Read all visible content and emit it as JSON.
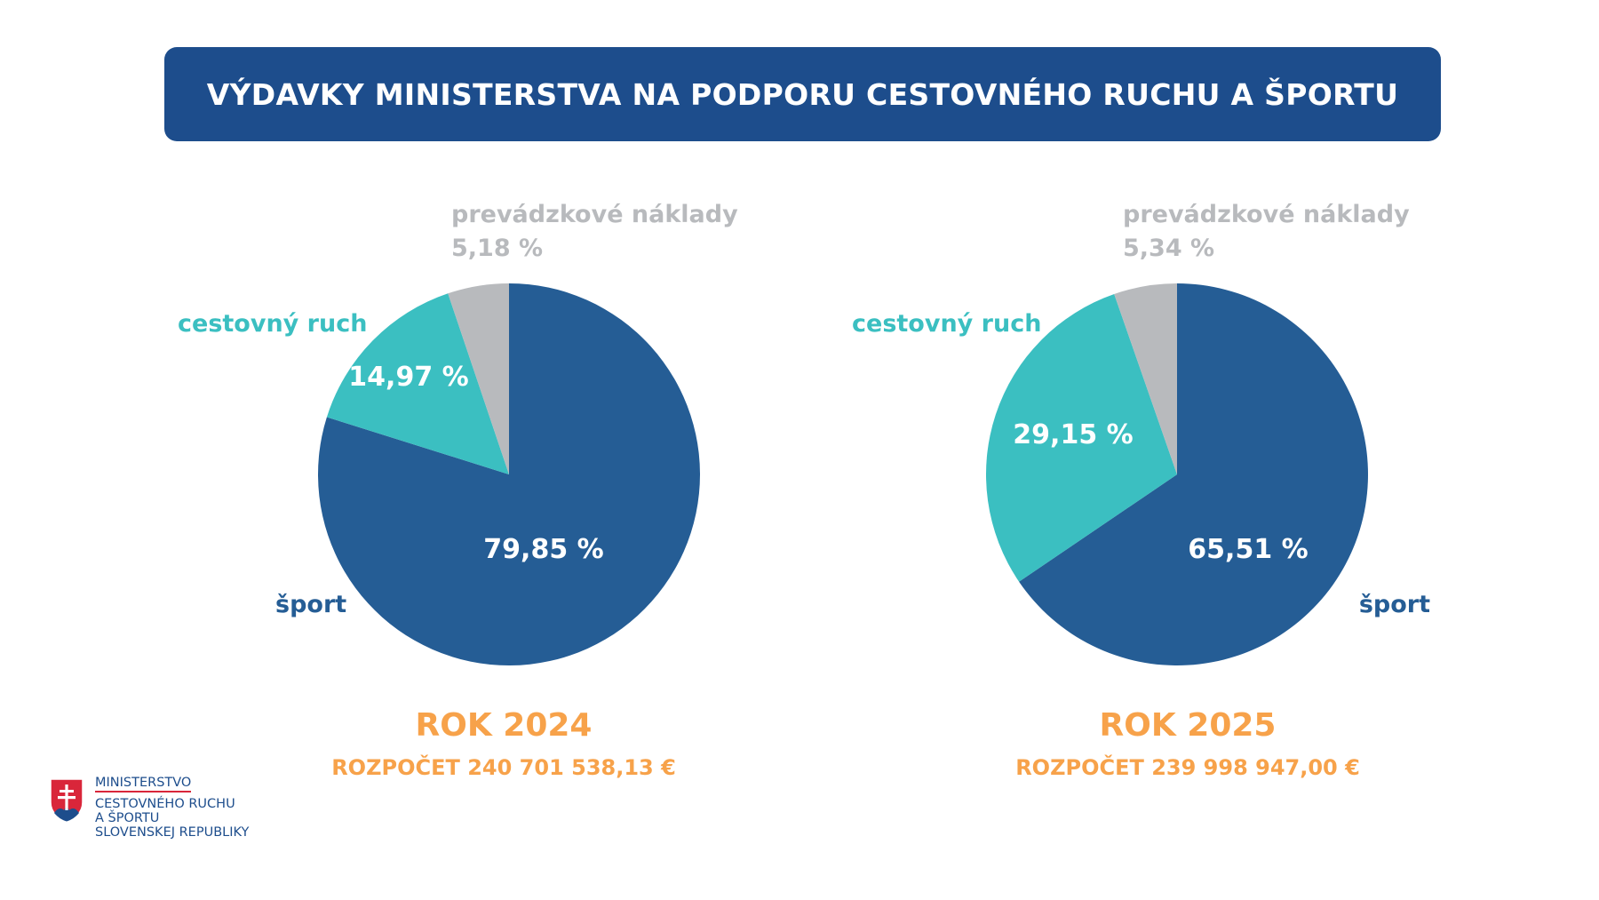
{
  "title": "VÝDAVKY MINISTERSTVA NA PODPORU CESTOVNÉHO RUCHU A ŠPORTU",
  "colors": {
    "banner": "#1d4d8c",
    "sport": "#255d95",
    "tourism": "#3bbfc1",
    "operating": "#b8babd",
    "year_text": "#f7a24a",
    "tourism_label": "#3bbfc1",
    "sport_label": "#255d95",
    "operating_label": "#b8babd"
  },
  "chart_data": [
    {
      "type": "pie",
      "year_label": "ROK 2024",
      "budget_label": "ROZPOČET 240 701 538,13 €",
      "slices": [
        {
          "key": "sport",
          "name": "šport",
          "value": 79.85,
          "value_label": "79,85 %"
        },
        {
          "key": "tourism",
          "name": "cestovný ruch",
          "value": 14.97,
          "value_label": "14,97 %"
        },
        {
          "key": "operating",
          "name": "prevádzkové náklady",
          "value": 5.18,
          "value_label": "5,18 %"
        }
      ]
    },
    {
      "type": "pie",
      "year_label": "ROK 2025",
      "budget_label": "ROZPOČET 239 998 947,00 €",
      "slices": [
        {
          "key": "sport",
          "name": "šport",
          "value": 65.51,
          "value_label": "65,51 %"
        },
        {
          "key": "tourism",
          "name": "cestovný ruch",
          "value": 29.15,
          "value_label": "29,15 %"
        },
        {
          "key": "operating",
          "name": "prevádzkové náklady",
          "value": 5.34,
          "value_label": "5,34 %"
        }
      ]
    }
  ],
  "logo": {
    "line1": "MINISTERSTVO",
    "line2": "CESTOVNÉHO RUCHU",
    "line3": "A ŠPORTU",
    "line4": "SLOVENSKEJ REPUBLIKY"
  }
}
